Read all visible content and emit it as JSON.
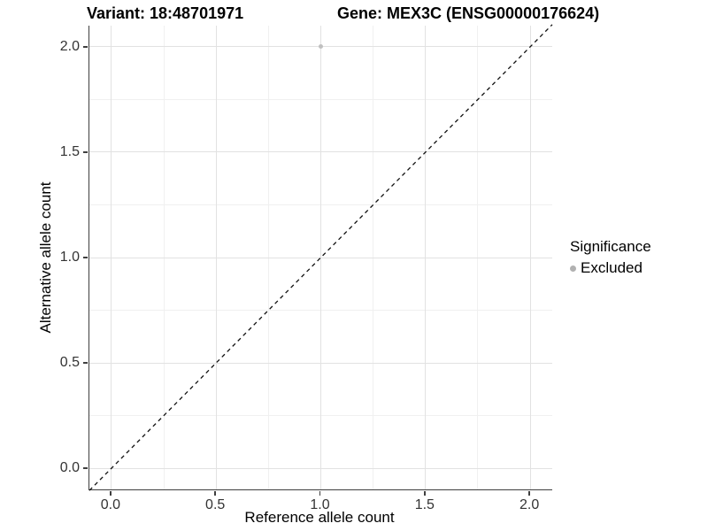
{
  "chart_data": {
    "type": "scatter",
    "title_left": "Variant: 18:48701971",
    "title_right": "Gene: MEX3C (ENSG00000176624)",
    "xlabel": "Reference allele count",
    "ylabel": "Alternative allele count",
    "x_ticks": [
      0.0,
      0.5,
      1.0,
      1.5,
      2.0
    ],
    "x_tick_labels": [
      "0.0",
      "0.5",
      "1.0",
      "1.5",
      "2.0"
    ],
    "x_minor_ticks": [
      0.25,
      0.75,
      1.25,
      1.75
    ],
    "y_ticks": [
      0.0,
      0.5,
      1.0,
      1.5,
      2.0
    ],
    "y_tick_labels": [
      "0.0",
      "0.5",
      "1.0",
      "1.5",
      "2.0"
    ],
    "y_minor_ticks": [
      0.25,
      0.75,
      1.25,
      1.75
    ],
    "xlim": [
      -0.105,
      2.105
    ],
    "ylim": [
      -0.1,
      2.1
    ],
    "grid": "major-and-minor",
    "points": [
      {
        "x": 1.0,
        "y": 2.0,
        "significance": "Excluded"
      }
    ],
    "identity_line": {
      "style": "dashed",
      "from": [
        -0.105,
        -0.105
      ],
      "to": [
        2.105,
        2.105
      ]
    },
    "legend": {
      "title": "Significance",
      "position": "right",
      "items": [
        {
          "label": "Excluded",
          "color": "#b1b1b1"
        }
      ]
    },
    "colors": {
      "point": "#c0c0c0",
      "legend_dot": "#b1b1b1",
      "identity_line": "#111111",
      "grid_major": "#e2e2e2",
      "grid_minor": "#f0f0f0",
      "axis_line": "#3f3f3f",
      "tick_label": "#333333",
      "background": "#ffffff"
    }
  }
}
